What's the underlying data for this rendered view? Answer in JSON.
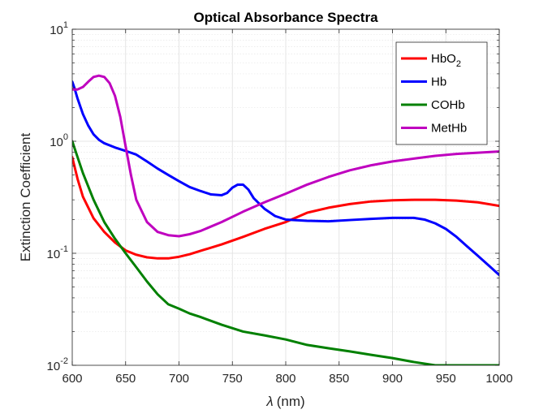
{
  "chart_data": {
    "type": "line",
    "title": "Optical Absorbance Spectra",
    "xlabel_symbol": "λ",
    "xlabel_unit": "(nm)",
    "ylabel": "Extinction Coefficient",
    "xlim": [
      600,
      1000
    ],
    "ylim": [
      0.01,
      10
    ],
    "yscale": "log",
    "grid": true,
    "legend_position": "top-right",
    "x_ticks": [
      600,
      650,
      700,
      750,
      800,
      850,
      900,
      950,
      1000
    ],
    "x_tick_labels": [
      "600",
      "650",
      "700",
      "750",
      "800",
      "850",
      "900",
      "950",
      "1000"
    ],
    "y_ticks": [
      {
        "value": 0.01,
        "base": "10",
        "exp": "-2"
      },
      {
        "value": 0.1,
        "base": "10",
        "exp": "-1"
      },
      {
        "value": 1,
        "base": "10",
        "exp": "0"
      },
      {
        "value": 10,
        "base": "10",
        "exp": "1"
      }
    ],
    "series": [
      {
        "name": "HbO",
        "name_sub": "2",
        "color": "#ff0000",
        "x": [
          600,
          605,
          610,
          620,
          630,
          640,
          650,
          660,
          670,
          680,
          690,
          700,
          710,
          720,
          740,
          760,
          780,
          800,
          820,
          840,
          860,
          880,
          900,
          920,
          940,
          960,
          980,
          1000
        ],
        "y": [
          0.72,
          0.46,
          0.32,
          0.205,
          0.155,
          0.125,
          0.106,
          0.097,
          0.092,
          0.09,
          0.09,
          0.093,
          0.098,
          0.105,
          0.12,
          0.14,
          0.165,
          0.19,
          0.23,
          0.255,
          0.275,
          0.29,
          0.297,
          0.3,
          0.3,
          0.295,
          0.285,
          0.265
        ]
      },
      {
        "name": "Hb",
        "name_sub": "",
        "color": "#0000ff",
        "x": [
          600,
          602,
          605,
          610,
          615,
          620,
          625,
          630,
          640,
          650,
          660,
          670,
          680,
          690,
          700,
          710,
          720,
          730,
          740,
          745,
          750,
          755,
          760,
          765,
          770,
          780,
          790,
          800,
          820,
          840,
          860,
          880,
          900,
          920,
          930,
          940,
          950,
          960,
          970,
          980,
          990,
          1000
        ],
        "y": [
          3.4,
          3.0,
          2.4,
          1.75,
          1.38,
          1.15,
          1.03,
          0.96,
          0.88,
          0.82,
          0.76,
          0.66,
          0.57,
          0.5,
          0.44,
          0.39,
          0.36,
          0.335,
          0.33,
          0.345,
          0.385,
          0.41,
          0.41,
          0.37,
          0.31,
          0.25,
          0.215,
          0.2,
          0.195,
          0.193,
          0.198,
          0.203,
          0.207,
          0.207,
          0.2,
          0.185,
          0.165,
          0.14,
          0.115,
          0.095,
          0.078,
          0.064
        ]
      },
      {
        "name": "COHb",
        "name_sub": "",
        "color": "#008000",
        "x": [
          600,
          605,
          610,
          620,
          630,
          640,
          650,
          660,
          670,
          680,
          690,
          700,
          710,
          720,
          740,
          760,
          780,
          800,
          820,
          840,
          860,
          880,
          900,
          920,
          940,
          960,
          980,
          1000
        ],
        "y": [
          1.0,
          0.72,
          0.52,
          0.3,
          0.19,
          0.135,
          0.1,
          0.075,
          0.056,
          0.043,
          0.035,
          0.032,
          0.029,
          0.027,
          0.023,
          0.02,
          0.0185,
          0.017,
          0.0152,
          0.0142,
          0.0133,
          0.0124,
          0.0116,
          0.0107,
          0.01,
          0.01,
          0.01,
          0.01
        ]
      },
      {
        "name": "MetHb",
        "name_sub": "",
        "color": "#bf00bf",
        "x": [
          600,
          605,
          610,
          615,
          620,
          625,
          630,
          635,
          640,
          645,
          650,
          655,
          660,
          670,
          680,
          690,
          700,
          710,
          720,
          740,
          760,
          780,
          800,
          820,
          840,
          860,
          880,
          900,
          920,
          940,
          960,
          980,
          1000
        ],
        "y": [
          2.9,
          2.9,
          3.05,
          3.4,
          3.75,
          3.85,
          3.75,
          3.3,
          2.55,
          1.65,
          0.9,
          0.5,
          0.3,
          0.19,
          0.155,
          0.145,
          0.142,
          0.148,
          0.158,
          0.19,
          0.235,
          0.285,
          0.34,
          0.41,
          0.48,
          0.55,
          0.61,
          0.66,
          0.7,
          0.74,
          0.77,
          0.79,
          0.81
        ]
      }
    ]
  }
}
